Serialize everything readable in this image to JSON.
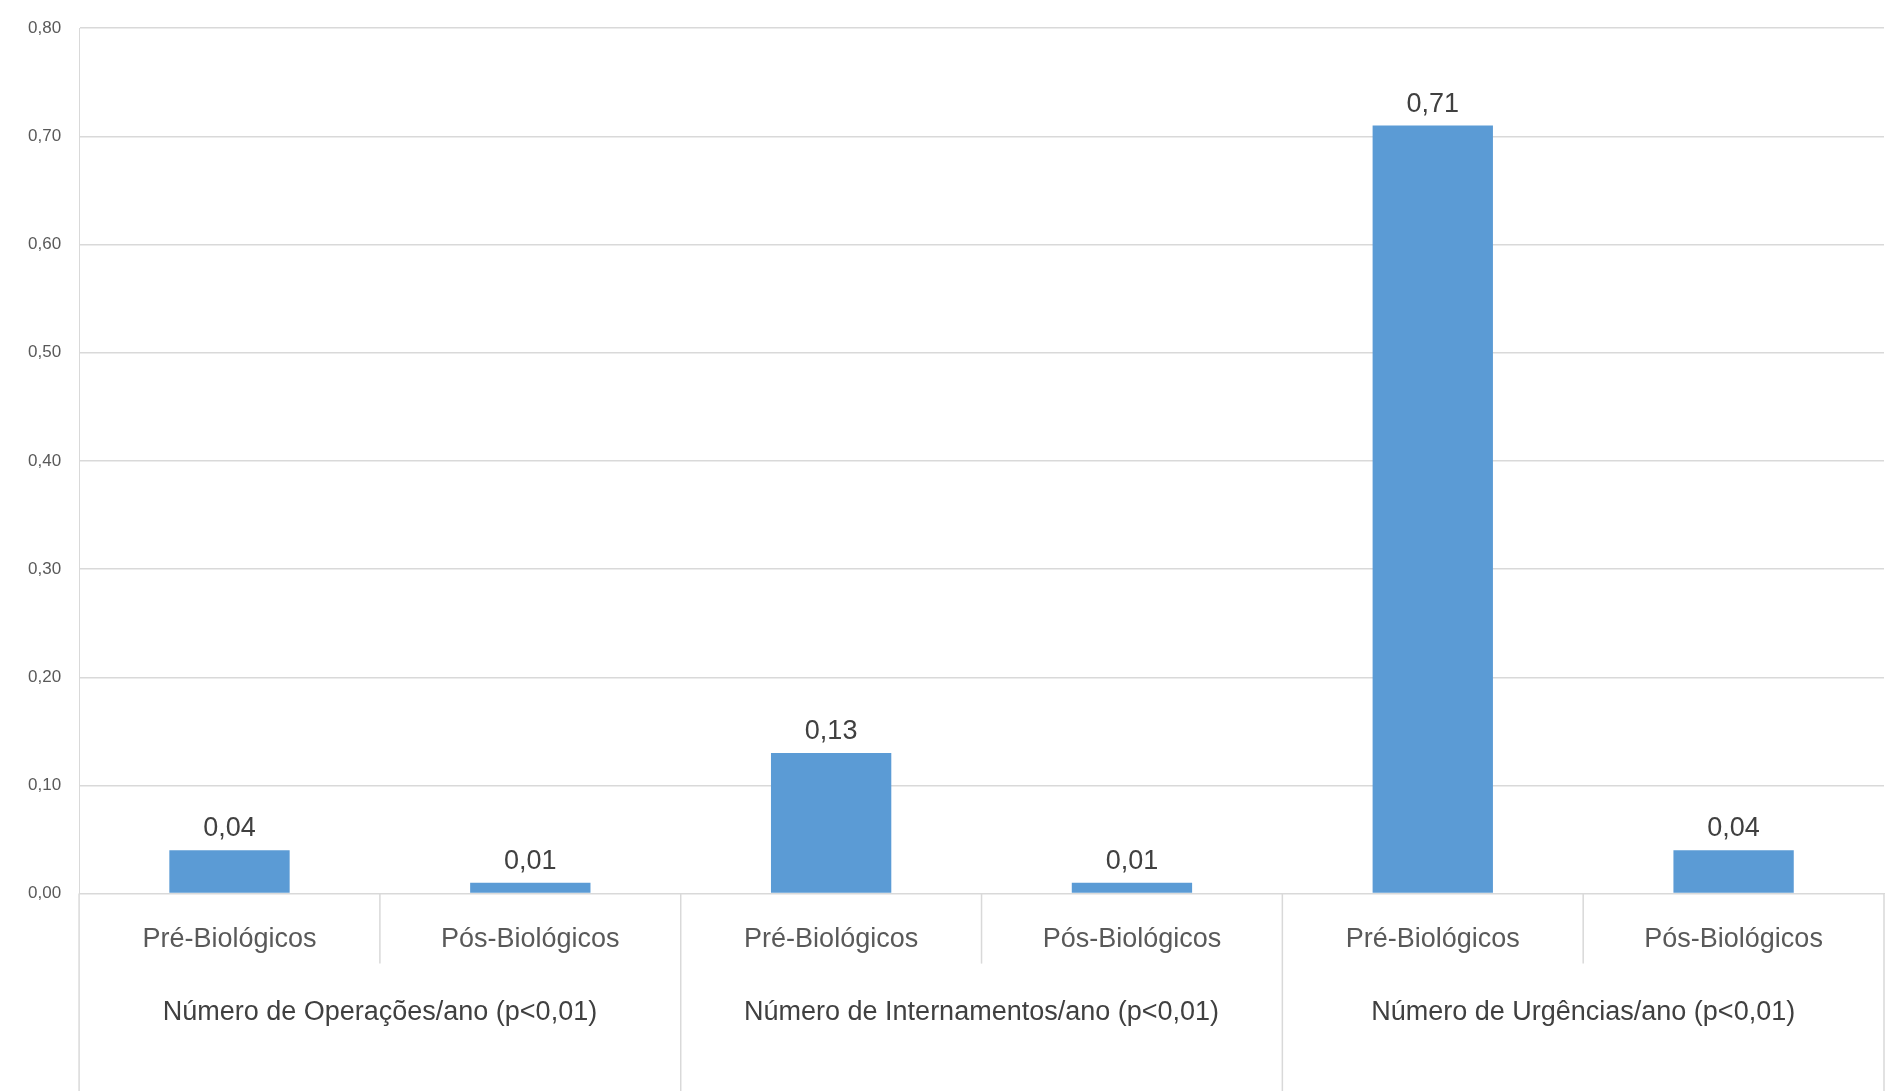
{
  "chart_data": {
    "type": "bar",
    "categories": [
      "Pré-Biológicos",
      "Pós-Biológicos",
      "Pré-Biológicos",
      "Pós-Biológicos",
      "Pré-Biológicos",
      "Pós-Biológicos"
    ],
    "values": [
      0.04,
      0.01,
      0.13,
      0.01,
      0.71,
      0.04
    ],
    "value_labels": [
      "0,04",
      "0,01",
      "0,13",
      "0,01",
      "0,71",
      "0,04"
    ],
    "color": "#5b9bd5",
    "ylim": [
      0,
      0.8
    ],
    "yticks": [
      {
        "value": 0,
        "label": "0,00"
      },
      {
        "value": 0.1,
        "label": "0,10"
      },
      {
        "value": 0.2,
        "label": "0,20"
      },
      {
        "value": 0.3,
        "label": "0,30"
      },
      {
        "value": 0.4,
        "label": "0,40"
      },
      {
        "value": 0.5,
        "label": "0,50"
      },
      {
        "value": 0.6,
        "label": "0,60"
      },
      {
        "value": 0.7,
        "label": "0,70"
      },
      {
        "value": 0.8,
        "label": "0,80"
      }
    ],
    "grid": "y",
    "annotations": [
      "Número de Operações/ano (p<0,01)",
      "Número de Internamentos/ano (p<0,01)",
      "Número de Urgências/ano (p<0,01)"
    ]
  }
}
